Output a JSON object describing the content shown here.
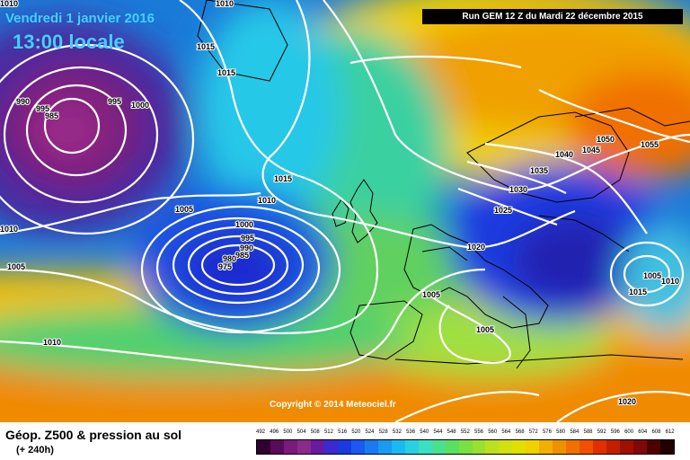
{
  "header": {
    "date": "Vendredi 1 janvier 2016",
    "time": "13:00 locale",
    "run": "Run GEM 12 Z du Mardi 22 décembre 2015"
  },
  "copyright": "Copyright © 2014 Meteociel.fr",
  "footer": {
    "title": "Géop. Z500 & pression au sol",
    "subtitle": "(+ 240h)"
  },
  "scale": {
    "labels": [
      "492",
      "496",
      "500",
      "504",
      "508",
      "512",
      "516",
      "520",
      "524",
      "528",
      "532",
      "536",
      "540",
      "544",
      "548",
      "552",
      "556",
      "560",
      "564",
      "568",
      "572",
      "576",
      "580",
      "584",
      "588",
      "592",
      "596",
      "600",
      "604",
      "608",
      "612"
    ],
    "colors": [
      "#300030",
      "#5a0a5a",
      "#7a1a7a",
      "#8a2a8a",
      "#6a1aa0",
      "#3a2ad0",
      "#1a3ae0",
      "#1a5af0",
      "#1a7af0",
      "#1a9af0",
      "#1abaf0",
      "#2ad0e0",
      "#3ae0c0",
      "#4ae090",
      "#5ae060",
      "#7ae040",
      "#9ae030",
      "#bae020",
      "#d0e010",
      "#e0e000",
      "#f0d000",
      "#f0b000",
      "#f09000",
      "#f07000",
      "#f05000",
      "#e03000",
      "#c02000",
      "#a01000",
      "#800808",
      "#500000",
      "#200000"
    ]
  },
  "isobar_labels": [
    {
      "text": "1010"
    },
    {
      "text": "1015"
    },
    {
      "text": "1015"
    },
    {
      "text": "990"
    },
    {
      "text": "995"
    },
    {
      "text": "985"
    },
    {
      "text": "995"
    },
    {
      "text": "1000"
    },
    {
      "text": "1005"
    },
    {
      "text": "1010"
    },
    {
      "text": "1005"
    },
    {
      "text": "1015"
    },
    {
      "text": "1010"
    },
    {
      "text": "1000"
    },
    {
      "text": "995"
    },
    {
      "text": "990"
    },
    {
      "text": "985"
    },
    {
      "text": "980"
    },
    {
      "text": "975"
    },
    {
      "text": "1010"
    },
    {
      "text": "1005"
    },
    {
      "text": "1020"
    },
    {
      "text": "1025"
    },
    {
      "text": "1030"
    },
    {
      "text": "1035"
    },
    {
      "text": "1040"
    },
    {
      "text": "1045"
    },
    {
      "text": "1050"
    },
    {
      "text": "1055"
    },
    {
      "text": "1005"
    },
    {
      "text": "1010"
    },
    {
      "text": "1015"
    },
    {
      "text": "1005"
    },
    {
      "text": "1020"
    },
    {
      "text": "1010"
    }
  ]
}
